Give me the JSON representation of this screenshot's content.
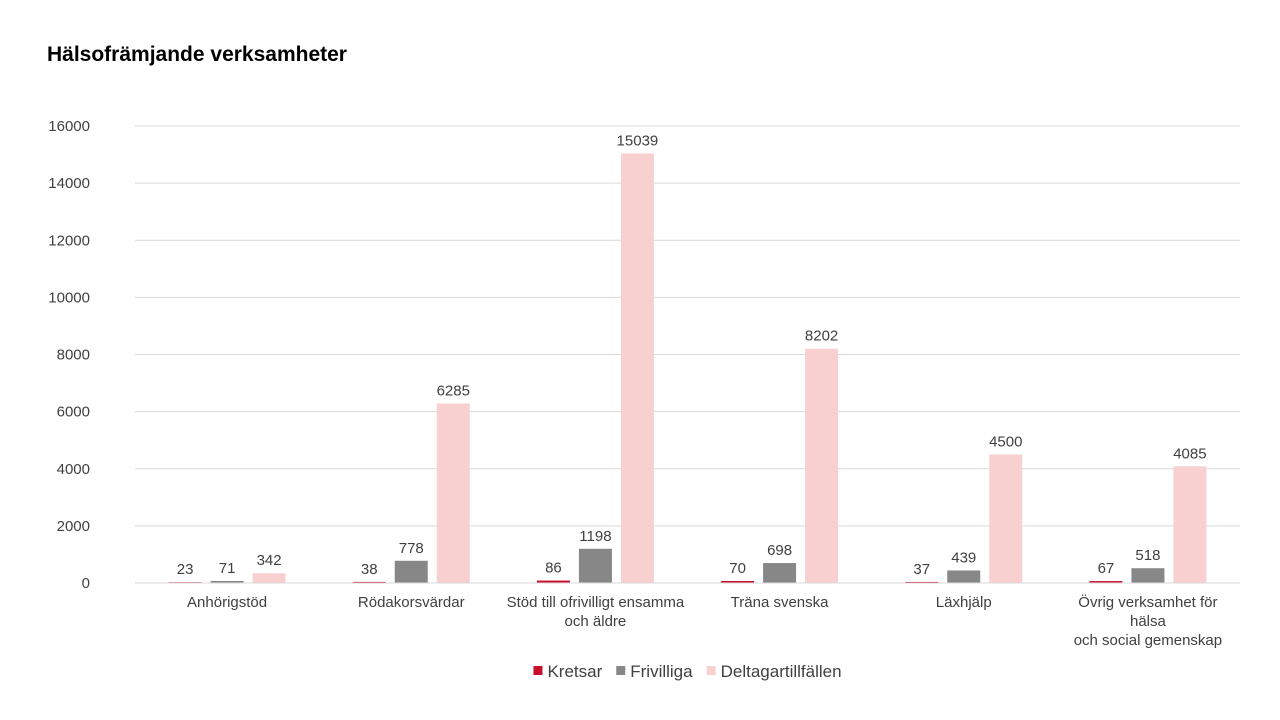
{
  "chart_data": {
    "type": "bar",
    "title": "Hälsofrämjande verksamheter",
    "xlabel": "",
    "ylabel": "",
    "categories": [
      [
        "Anhörigstöd"
      ],
      [
        "Rödakorsvärdar"
      ],
      [
        "Stöd till ofrivilligt ensamma",
        "och äldre"
      ],
      [
        "Träna svenska"
      ],
      [
        "Läxhjälp"
      ],
      [
        "Övrig verksamhet för",
        "hälsa",
        "och social gemenskap"
      ]
    ],
    "series": [
      {
        "name": "Kretsar",
        "color": "#C8102E",
        "values": [
          23,
          38,
          86,
          70,
          37,
          67
        ]
      },
      {
        "name": "Frivilliga",
        "color": "#878787",
        "values": [
          71,
          778,
          1198,
          698,
          439,
          518
        ]
      },
      {
        "name": "Deltagartillfällen",
        "color": "#F9D0D0",
        "values": [
          342,
          6285,
          15039,
          8202,
          4500,
          4085
        ]
      }
    ],
    "ylim": [
      0,
      16000
    ],
    "yticks": [
      0,
      2000,
      4000,
      6000,
      8000,
      10000,
      12000,
      14000,
      16000
    ],
    "grid": true,
    "legend_position": "bottom",
    "data_labels": true
  }
}
